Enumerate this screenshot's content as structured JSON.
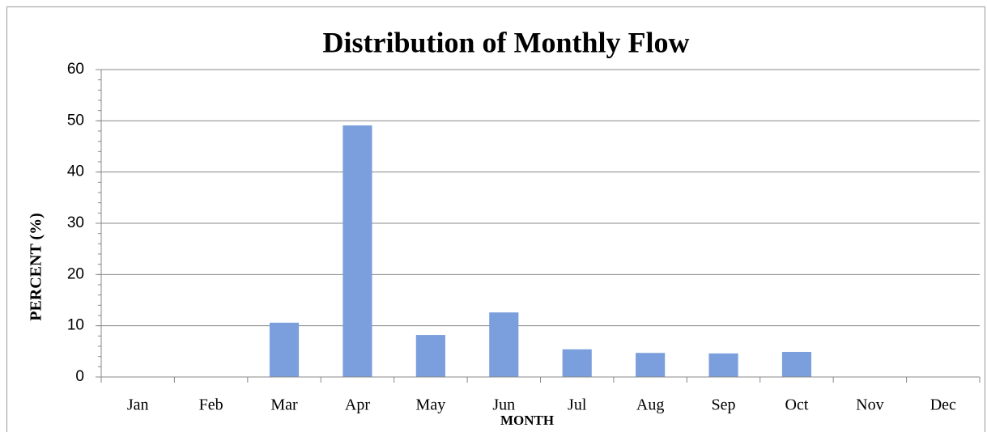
{
  "chart_data": {
    "type": "bar",
    "title": "Distribution of Monthly Flow",
    "x_label": "MONTH",
    "y_label": "PERCENT (%)",
    "categories": [
      "Jan",
      "Feb",
      "Mar",
      "Apr",
      "May",
      "Jun",
      "Jul",
      "Aug",
      "Sep",
      "Oct",
      "Nov",
      "Dec"
    ],
    "values": [
      0,
      0,
      10.6,
      49.1,
      8.2,
      12.6,
      5.4,
      4.7,
      4.6,
      4.9,
      0,
      0
    ],
    "color": "#7b9fdc",
    "ylim": [
      0,
      60
    ],
    "yticks": [
      0,
      10,
      20,
      30,
      40,
      50,
      60
    ],
    "grid": true
  }
}
